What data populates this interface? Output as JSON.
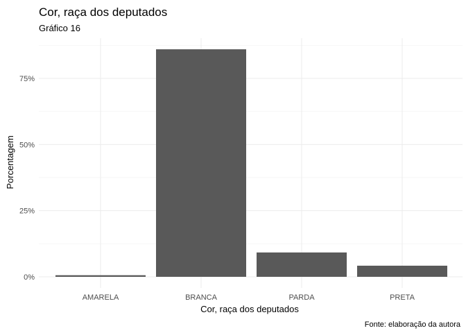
{
  "chart_data": {
    "type": "bar",
    "title": "Cor, raça dos deputados",
    "subtitle": "Gráfico 16",
    "xlabel": "Cor, raça dos deputados",
    "ylabel": "Porcentagem",
    "caption": "Fonte: elaboração da autora",
    "categories": [
      "AMARELA",
      "BRANCA",
      "PARDA",
      "PRETA"
    ],
    "values": [
      0.6,
      86.0,
      9.2,
      4.2
    ],
    "ylim": [
      0,
      90
    ],
    "yticks": [
      0,
      25,
      50,
      75
    ],
    "ytick_labels": [
      "0%",
      "25%",
      "50%",
      "75%"
    ],
    "bar_color": "#595959",
    "grid": true,
    "legend": "none"
  }
}
